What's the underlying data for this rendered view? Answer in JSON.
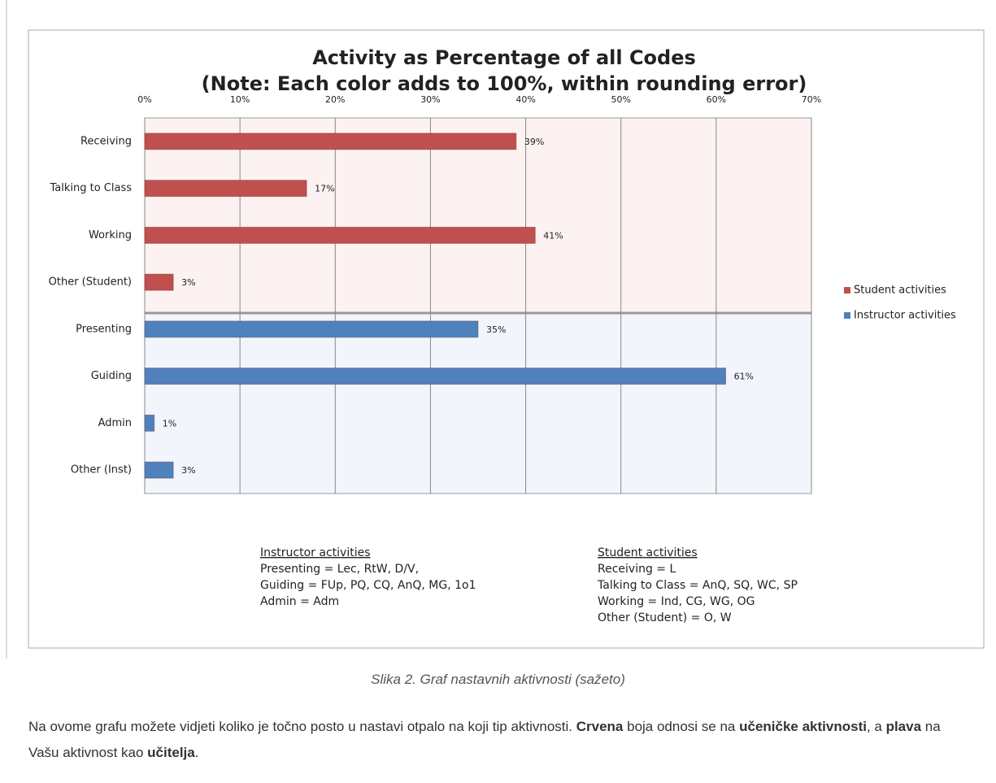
{
  "chart_data": {
    "type": "bar",
    "orientation": "horizontal",
    "title": "Activity as Percentage of all Codes",
    "subtitle": "(Note: Each color adds to 100%, within rounding error)",
    "categories": [
      "Receiving",
      "Talking to Class",
      "Working",
      "Other (Student)",
      "Presenting",
      "Guiding",
      "Admin",
      "Other (Inst)"
    ],
    "series": [
      {
        "name": "Student activities",
        "color": "#c0504d",
        "values": [
          39,
          17,
          41,
          3,
          null,
          null,
          null,
          null
        ],
        "value_labels": [
          "39%",
          "17%",
          "41%",
          "3%",
          null,
          null,
          null,
          null
        ]
      },
      {
        "name": "Instructor activities",
        "color": "#4f81bd",
        "values": [
          null,
          null,
          null,
          null,
          35,
          61,
          1,
          3
        ],
        "value_labels": [
          null,
          null,
          null,
          null,
          "35%",
          "61%",
          "1%",
          "3%"
        ]
      }
    ],
    "xlim": [
      0,
      70
    ],
    "xticks": [
      {
        "value": 0,
        "label": "0%"
      },
      {
        "value": 10,
        "label": "10%"
      },
      {
        "value": 20,
        "label": "20%"
      },
      {
        "value": 30,
        "label": "30%"
      },
      {
        "value": 40,
        "label": "40%"
      },
      {
        "value": 50,
        "label": "50%"
      },
      {
        "value": 60,
        "label": "60%"
      },
      {
        "value": 70,
        "label": "70%"
      }
    ],
    "grid": true,
    "legend": "right",
    "notes": [
      {
        "heading": "Instructor activities",
        "lines": [
          "Presenting = Lec, RtW, D/V,",
          "Guiding = FUp, PQ, CQ, AnQ, MG, 1o1",
          "Admin = Adm"
        ]
      },
      {
        "heading": "Student activities",
        "lines": [
          "Receiving = L",
          "Talking to Class = AnQ, SQ, WC, SP",
          "Working  = Ind, CG, WG, OG",
          "Other (Student) = O, W"
        ]
      }
    ]
  },
  "caption": "Slika 2. Graf nastavnih aktivnosti (sažeto)",
  "paragraph": [
    {
      "text": "Na ovome grafu možete vidjeti koliko je točno posto u nastavi otpalo na koji tip aktivnosti. ",
      "bold": false
    },
    {
      "text": "Crvena",
      "bold": true
    },
    {
      "text": " boja odnosi se na ",
      "bold": false
    },
    {
      "text": "učeničke aktivnosti",
      "bold": true
    },
    {
      "text": ", a ",
      "bold": false
    },
    {
      "text": "plava",
      "bold": true
    },
    {
      "text": " na Vašu aktivnost kao ",
      "bold": false
    },
    {
      "text": "učitelja",
      "bold": true
    },
    {
      "text": ".",
      "bold": false
    }
  ]
}
